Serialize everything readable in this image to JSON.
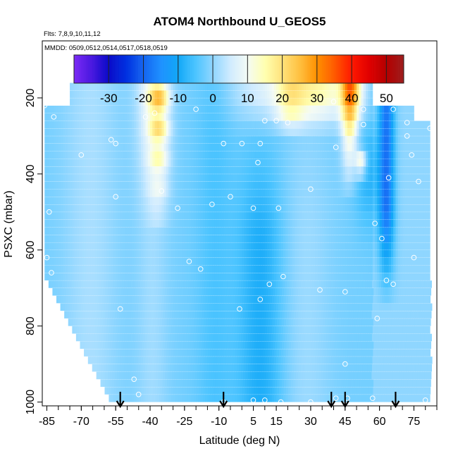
{
  "chart_data": {
    "type": "heatmap",
    "title": "ATOM4 Northbound U_GEOS5",
    "subtitle_flights": "Flts: 7,8,9,10,11,12",
    "subtitle_dates": "MMDD: 0509,0512,0514,0517,0518,0519",
    "xlabel": "Latitude (deg N)",
    "ylabel": "PSXC (mbar)",
    "xlim": [
      -87,
      85
    ],
    "ylim": [
      1010,
      50
    ],
    "x_ticks": [
      -85,
      -70,
      -55,
      -40,
      -25,
      -10,
      5,
      15,
      30,
      45,
      60,
      75
    ],
    "y_ticks": [
      200,
      400,
      600,
      800,
      1000
    ],
    "colorbar": {
      "range": [
        -40,
        55
      ],
      "tick_labels": [
        -30,
        -20,
        -10,
        0,
        10,
        20,
        30,
        40,
        50
      ],
      "stops": [
        {
          "v": -40,
          "color": "#7B2BF5"
        },
        {
          "v": -35,
          "color": "#4A18E0"
        },
        {
          "v": -30,
          "color": "#0A0AC8"
        },
        {
          "v": -25,
          "color": "#0030E0"
        },
        {
          "v": -20,
          "color": "#1565F0"
        },
        {
          "v": -15,
          "color": "#1E90FF"
        },
        {
          "v": -10,
          "color": "#12A8F7"
        },
        {
          "v": -5,
          "color": "#4CC4FF"
        },
        {
          "v": 0,
          "color": "#8FD6FF"
        },
        {
          "v": 5,
          "color": "#CFEBFF"
        },
        {
          "v": 10,
          "color": "#F4FBF4"
        },
        {
          "v": 15,
          "color": "#FFFFB0"
        },
        {
          "v": 20,
          "color": "#FFE27A"
        },
        {
          "v": 25,
          "color": "#FFC040"
        },
        {
          "v": 30,
          "color": "#FF9000"
        },
        {
          "v": 35,
          "color": "#FF5A00"
        },
        {
          "v": 40,
          "color": "#FF1800"
        },
        {
          "v": 45,
          "color": "#E00000"
        },
        {
          "v": 50,
          "color": "#B40000"
        },
        {
          "v": 55,
          "color": "#9C1C1C"
        }
      ]
    },
    "flight_arrows_lat": [
      -53,
      -8,
      39,
      45,
      67
    ],
    "grid": false,
    "legend": "none"
  }
}
